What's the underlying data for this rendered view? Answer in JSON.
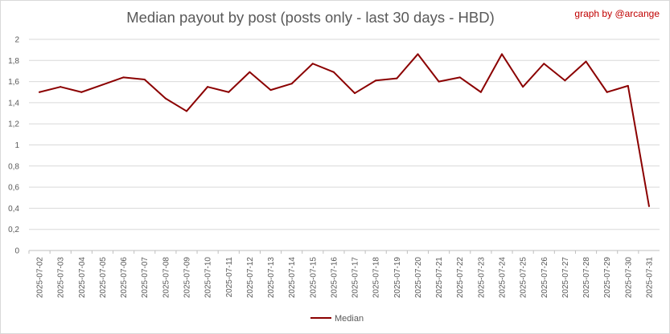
{
  "chart_data": {
    "type": "line",
    "title": "Median payout by post (posts only - last 30 days - HBD)",
    "credit": "graph by @arcange",
    "xlabel": "",
    "ylabel": "",
    "ylim": [
      0,
      2
    ],
    "y_ticks": [
      "0",
      "0,2",
      "0,4",
      "0,6",
      "0,8",
      "1",
      "1,2",
      "1,4",
      "1,6",
      "1,8",
      "2"
    ],
    "grid": true,
    "legend_position": "bottom",
    "categories": [
      "2025-07-02",
      "2025-07-03",
      "2025-07-04",
      "2025-07-05",
      "2025-07-06",
      "2025-07-07",
      "2025-07-08",
      "2025-07-09",
      "2025-07-10",
      "2025-07-11",
      "2025-07-12",
      "2025-07-13",
      "2025-07-14",
      "2025-07-15",
      "2025-07-16",
      "2025-07-17",
      "2025-07-18",
      "2025-07-19",
      "2025-07-20",
      "2025-07-21",
      "2025-07-22",
      "2025-07-23",
      "2025-07-24",
      "2025-07-25",
      "2025-07-26",
      "2025-07-27",
      "2025-07-28",
      "2025-07-29",
      "2025-07-30",
      "2025-07-31"
    ],
    "series": [
      {
        "name": "Median",
        "color": "#8b0000",
        "values": [
          1.5,
          1.55,
          1.5,
          1.57,
          1.64,
          1.62,
          1.44,
          1.32,
          1.55,
          1.5,
          1.69,
          1.52,
          1.58,
          1.77,
          1.69,
          1.49,
          1.61,
          1.63,
          1.86,
          1.6,
          1.64,
          1.5,
          1.86,
          1.55,
          1.77,
          1.61,
          1.79,
          1.5,
          1.56,
          0.42
        ]
      }
    ]
  }
}
